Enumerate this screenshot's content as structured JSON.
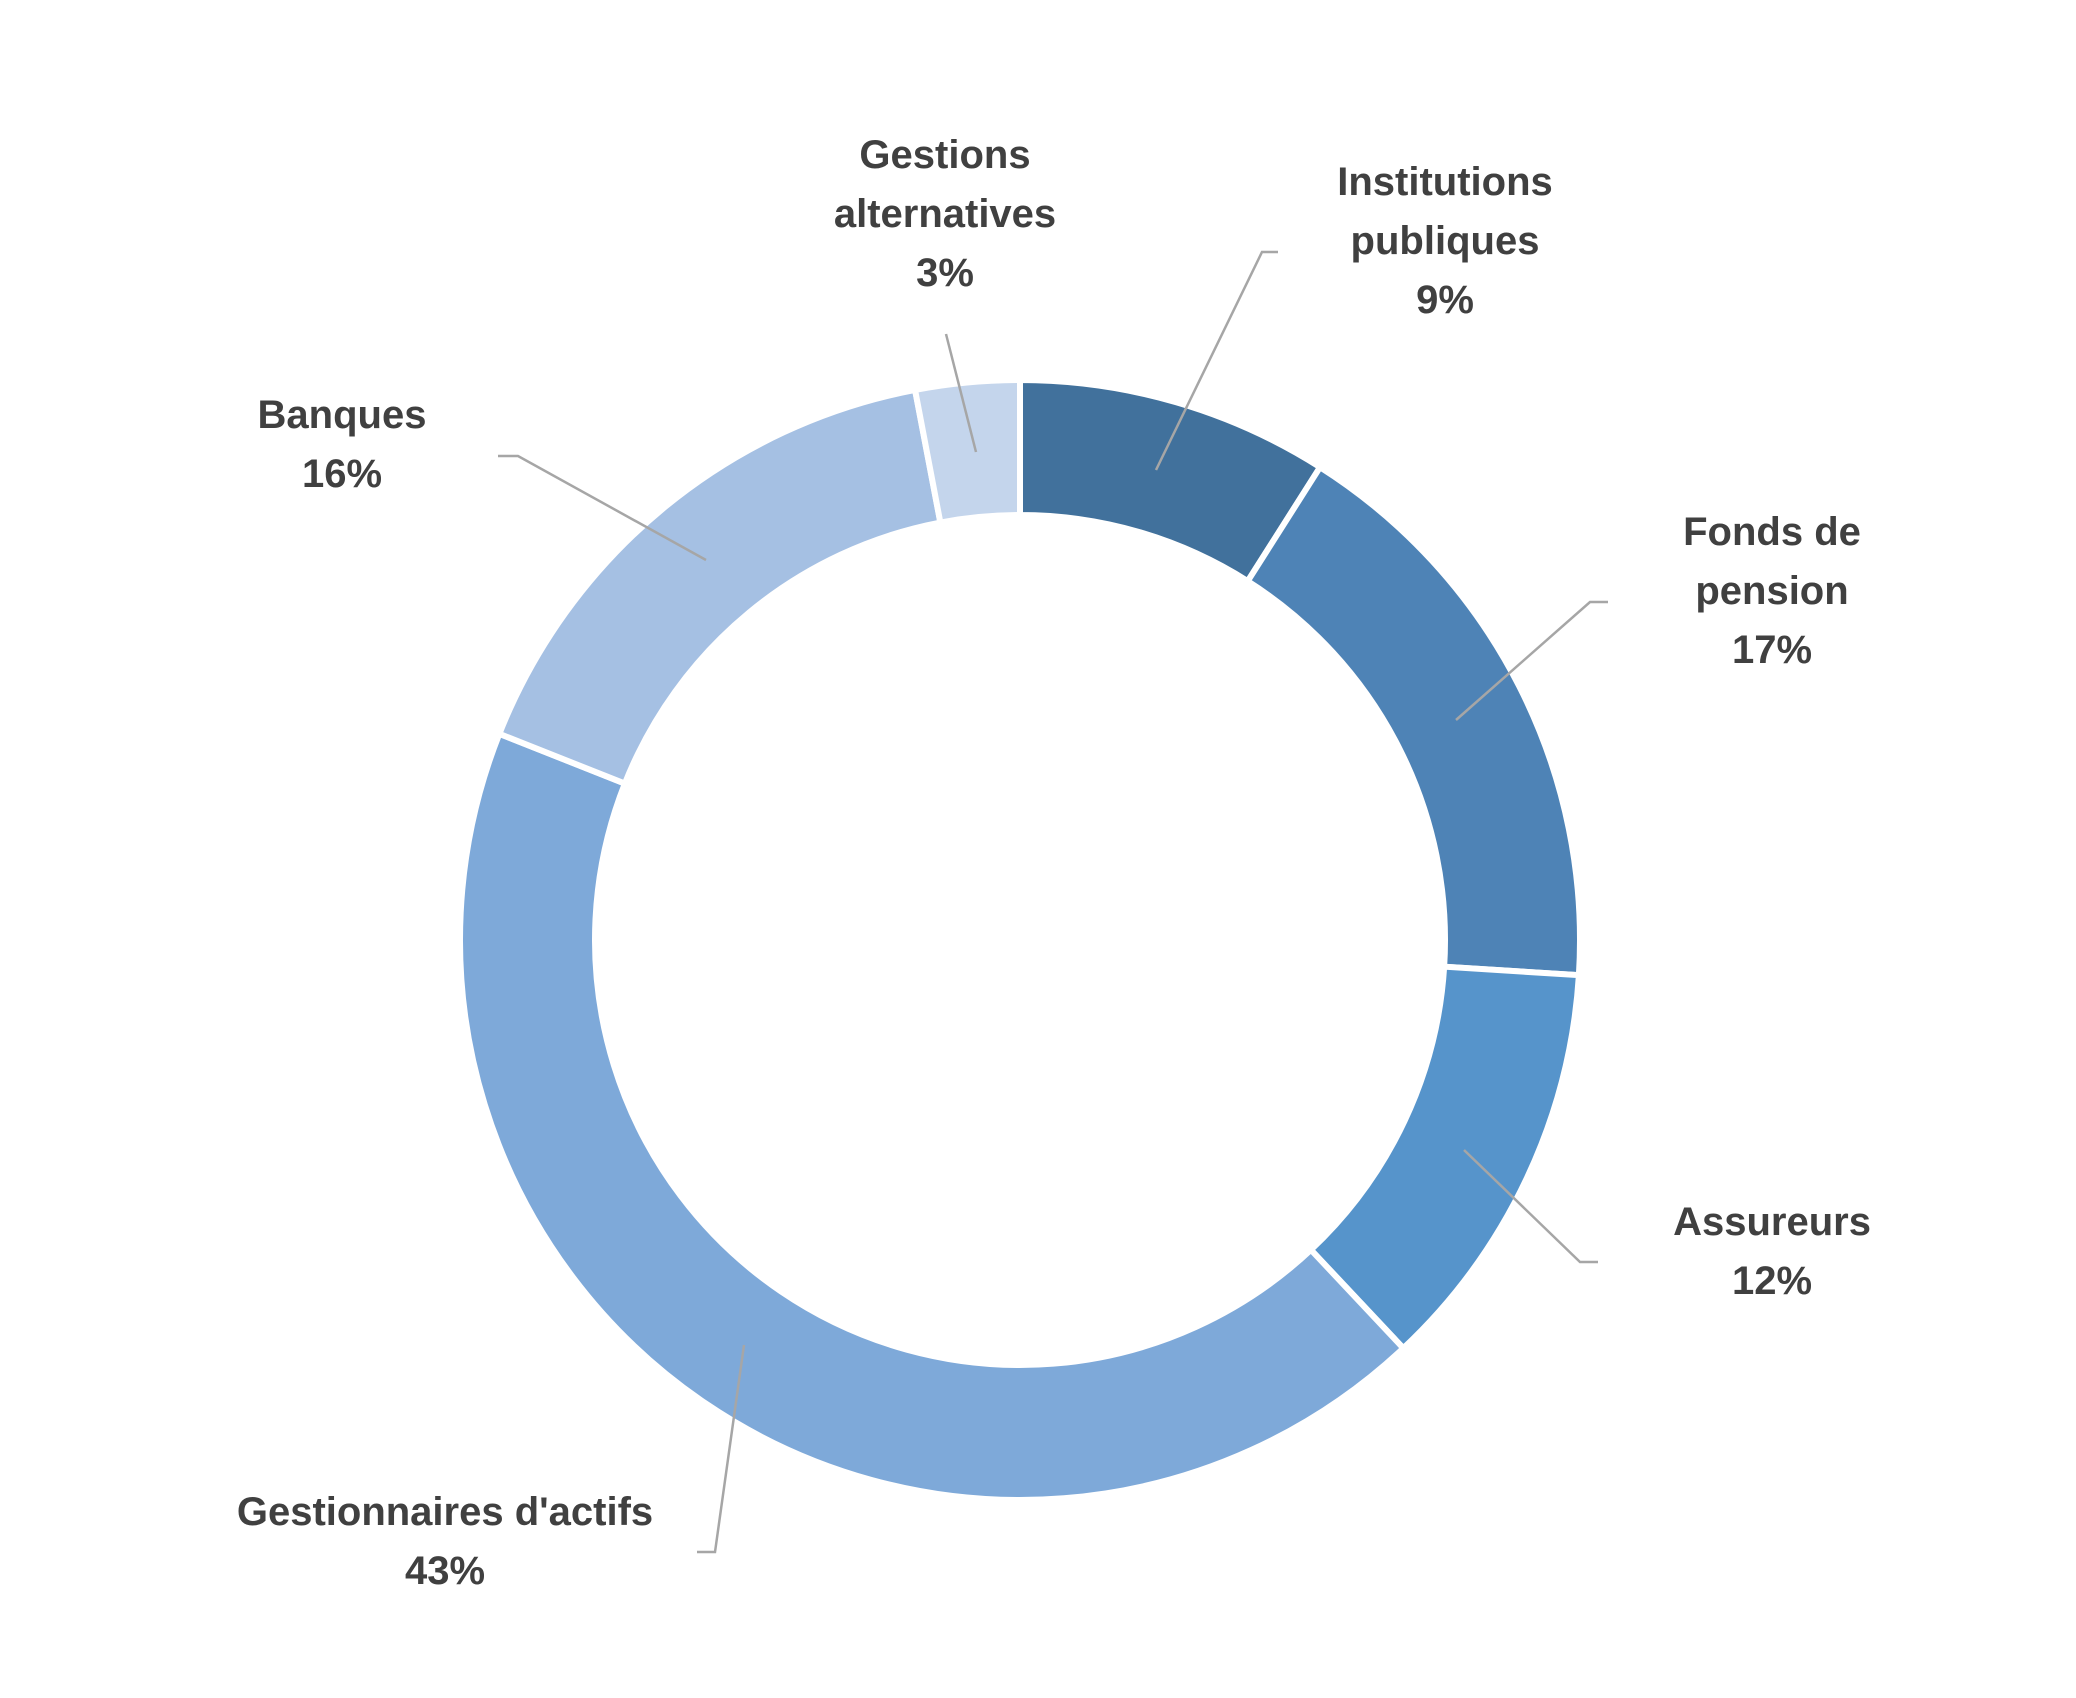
{
  "chart_data": {
    "type": "pie",
    "variant": "donut",
    "title": "",
    "slices": [
      {
        "label": [
          "Institutions",
          "publiques"
        ],
        "value": 9,
        "value_label": "9%",
        "color": "#41719c"
      },
      {
        "label": [
          "Fonds de",
          "pension"
        ],
        "value": 17,
        "value_label": "17%",
        "color": "#4e83b6"
      },
      {
        "label": [
          "Assureurs"
        ],
        "value": 12,
        "value_label": "12%",
        "color": "#5694cb"
      },
      {
        "label": [
          "Gestionnaires d'actifs"
        ],
        "value": 43,
        "value_label": "43%",
        "color": "#7ea9d9"
      },
      {
        "label": [
          "Banques"
        ],
        "value": 16,
        "value_label": "16%",
        "color": "#a5c0e3"
      },
      {
        "label": [
          "Gestions",
          "alternatives"
        ],
        "value": 3,
        "value_label": "3%",
        "color": "#c4d5ec"
      }
    ],
    "legend": "none",
    "data_labels": "outside-with-leader-lines",
    "start_angle": "12 o'clock",
    "direction": "clockwise"
  }
}
